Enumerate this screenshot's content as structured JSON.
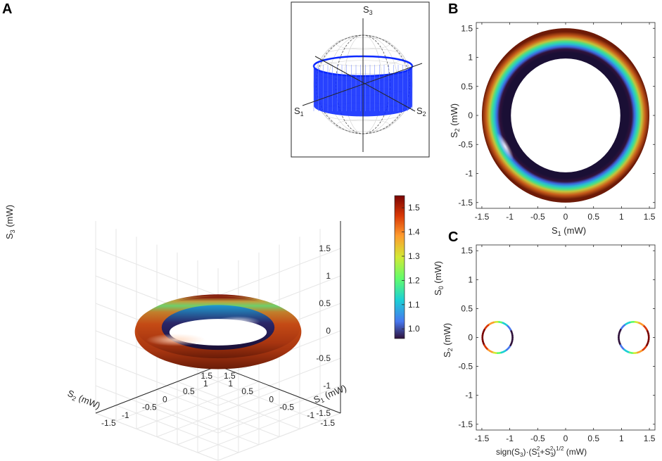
{
  "panels": {
    "A": {
      "letter": "A",
      "axis_ticks": [
        "-1.5",
        "-1",
        "-0.5",
        "0",
        "0.5",
        "1",
        "1.5"
      ],
      "z_label": {
        "main": "S",
        "sub": "3",
        "unit": " (mW)"
      },
      "x_label": {
        "main": "S",
        "sub": "1",
        "unit": " (mW)"
      },
      "y_label": {
        "main": "S",
        "sub": "2",
        "unit": " (mW)"
      },
      "colorbar": {
        "ticks": [
          "1.5",
          "1.4",
          "1.3",
          "1.2",
          "1.1",
          "1.0"
        ],
        "label": {
          "main": "S",
          "sub": "0",
          "unit": " (mW)"
        }
      },
      "inset": {
        "labels": [
          {
            "main": "S",
            "sub": "3"
          },
          {
            "main": "S",
            "sub": "1"
          },
          {
            "main": "S",
            "sub": "2"
          }
        ],
        "band_color": "#0a28ff"
      }
    },
    "B": {
      "letter": "B",
      "x_ticks": [
        "-1.5",
        "-1",
        "-0.5",
        "0",
        "0.5",
        "1",
        "1.5"
      ],
      "y_ticks": [
        "1.5",
        "1",
        "0.5",
        "0",
        "-0.5",
        "-1",
        "-1.5"
      ],
      "x_label": {
        "main": "S",
        "sub": "1",
        "unit": " (mW)"
      },
      "y_label": {
        "main": "S",
        "sub": "2",
        "unit": " (mW)"
      }
    },
    "C": {
      "letter": "C",
      "x_ticks": [
        "-1.5",
        "-1",
        "-0.5",
        "0",
        "0.5",
        "1",
        "1.5"
      ],
      "y_ticks": [
        "1.5",
        "1",
        "0.5",
        "0",
        "-0.5",
        "-1",
        "-1.5"
      ],
      "y_label": {
        "main": "S",
        "sub": "2",
        "unit": " (mW)"
      },
      "x_label": {
        "a": "sign(S",
        "a_sub": "3",
        "b": ")·(S",
        "b_sub": "1",
        "b_sup": "2",
        "c": "+S",
        "c_sub": "3",
        "c_sup": "2",
        "d": ")",
        "d_sup": "1/2",
        "e": " (mW)"
      }
    }
  },
  "chart_data": [
    {
      "type": "surface",
      "panel": "A",
      "shape": "torus",
      "axes": {
        "x": "S1 (mW)",
        "y": "S2 (mW)",
        "z": "S3 (mW)"
      },
      "xlim": [
        -1.5,
        1.5
      ],
      "ylim": [
        -1.5,
        1.5
      ],
      "zlim": [
        -1.5,
        1.5
      ],
      "torus_major_radius": 1.22,
      "torus_minor_radius": 0.28,
      "torus_center_z": 0,
      "color_quantity": "S0 (mW)",
      "color_range": [
        0.96,
        1.55
      ],
      "colormap_stops": [
        "#30123b",
        "#4777ef",
        "#1bd0d5",
        "#62fc6b",
        "#d2e935",
        "#fe9b2d",
        "#d93806",
        "#7a0403"
      ],
      "grid": true
    },
    {
      "type": "line",
      "panel": "A-inset",
      "description": "Poincare sphere with equatorial band",
      "band_latitude_range": [
        -0.2,
        0.2
      ]
    },
    {
      "type": "area",
      "panel": "B",
      "shape": "annulus",
      "x_axis": "S1 (mW)",
      "y_axis": "S2 (mW)",
      "inner_radius": 0.98,
      "outer_radius": 1.5,
      "xlim": [
        -1.6,
        1.6
      ],
      "ylim": [
        -1.6,
        1.6
      ],
      "grid": false
    },
    {
      "type": "line",
      "panel": "C",
      "x_axis": "sign(S3)·(S1²+S3²)^1/2 (mW)",
      "y_axis": "S2 (mW)",
      "xlim": [
        -1.6,
        1.6
      ],
      "ylim": [
        -1.6,
        1.6
      ],
      "circles": [
        {
          "center": [
            -1.22,
            0
          ],
          "radius": 0.27
        },
        {
          "center": [
            1.22,
            0
          ],
          "radius": 0.27
        }
      ],
      "grid": false
    }
  ]
}
